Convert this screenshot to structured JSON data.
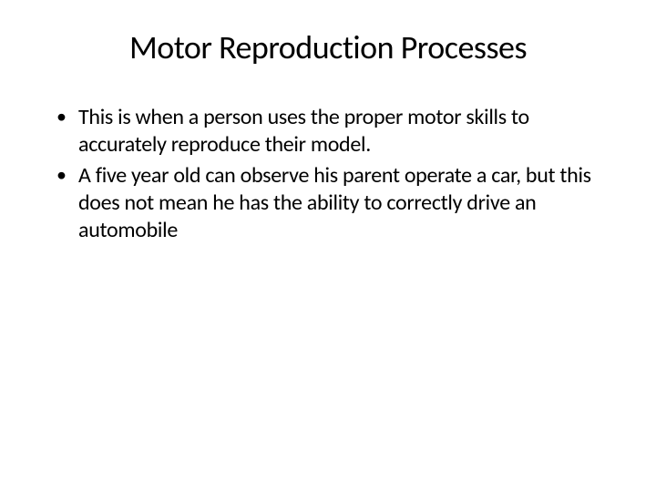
{
  "slide": {
    "title": "Motor Reproduction Processes",
    "bullets": [
      "This is when a person uses the proper motor skills to accurately reproduce their model.",
      "A five year old can observe his parent operate a car, but this does not mean he has the ability to correctly drive an automobile"
    ]
  },
  "style": {
    "background_color": "#ffffff",
    "text_color": "#000000",
    "title_fontsize": 36,
    "body_fontsize": 24,
    "font_family": "Calibri"
  }
}
